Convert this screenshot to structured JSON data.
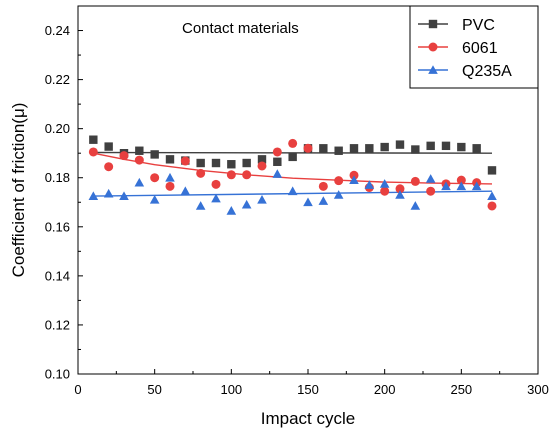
{
  "chart_data": {
    "type": "scatter",
    "annotation": "Contact materials",
    "xlabel": "Impact cycle",
    "ylabel": "Coefficient of friction(μ)",
    "xlim": [
      0,
      300
    ],
    "ylim": [
      0.1,
      0.25
    ],
    "x_ticks": [
      "0",
      "50",
      "100",
      "150",
      "200",
      "250",
      "300"
    ],
    "y_ticks": [
      "0.10",
      "0.12",
      "0.14",
      "0.16",
      "0.18",
      "0.20",
      "0.22",
      "0.24"
    ],
    "grid": false,
    "legend_position": "top-right",
    "series": [
      {
        "name": "PVC",
        "marker": "square",
        "color": "#404040",
        "x": [
          10,
          20,
          30,
          40,
          50,
          60,
          70,
          80,
          90,
          100,
          110,
          120,
          130,
          140,
          150,
          160,
          170,
          180,
          190,
          200,
          210,
          220,
          230,
          240,
          250,
          260,
          270
        ],
        "y": [
          0.1955,
          0.1927,
          0.19,
          0.191,
          0.1895,
          0.1875,
          0.187,
          0.186,
          0.186,
          0.1855,
          0.186,
          0.1875,
          0.1865,
          0.1885,
          0.192,
          0.192,
          0.191,
          0.192,
          0.192,
          0.1925,
          0.1935,
          0.1915,
          0.193,
          0.193,
          0.1925,
          0.192,
          0.183
        ],
        "fit": [
          [
            10,
            0.1903
          ],
          [
            270,
            0.19
          ]
        ]
      },
      {
        "name": "6061",
        "marker": "circle",
        "color": "#e8403f",
        "x": [
          10,
          20,
          30,
          40,
          50,
          60,
          70,
          80,
          90,
          100,
          110,
          120,
          130,
          140,
          150,
          160,
          170,
          180,
          190,
          200,
          210,
          220,
          230,
          240,
          250,
          260,
          270
        ],
        "y": [
          0.1905,
          0.1845,
          0.189,
          0.1872,
          0.18,
          0.1765,
          0.1868,
          0.1818,
          0.1773,
          0.1812,
          0.1812,
          0.1848,
          0.1905,
          0.194,
          0.192,
          0.1765,
          0.1788,
          0.181,
          0.176,
          0.1745,
          0.1755,
          0.1785,
          0.1745,
          0.1775,
          0.179,
          0.178,
          0.1685
        ],
        "fit": [
          [
            10,
            0.19
          ],
          [
            30,
            0.1875
          ],
          [
            50,
            0.1853
          ],
          [
            80,
            0.183
          ],
          [
            110,
            0.1812
          ],
          [
            140,
            0.1798
          ],
          [
            170,
            0.179
          ],
          [
            200,
            0.1782
          ],
          [
            230,
            0.1778
          ],
          [
            270,
            0.1775
          ]
        ]
      },
      {
        "name": "Q235A",
        "marker": "triangle",
        "color": "#3672d6",
        "x": [
          10,
          20,
          30,
          40,
          50,
          60,
          70,
          80,
          90,
          100,
          110,
          120,
          130,
          140,
          150,
          160,
          170,
          180,
          190,
          200,
          210,
          220,
          230,
          240,
          250,
          260,
          270
        ],
        "y": [
          0.1725,
          0.1735,
          0.1725,
          0.178,
          0.171,
          0.18,
          0.1745,
          0.1685,
          0.1715,
          0.1665,
          0.169,
          0.171,
          0.1815,
          0.1745,
          0.17,
          0.1705,
          0.173,
          0.179,
          0.177,
          0.1775,
          0.173,
          0.1685,
          0.1795,
          0.1765,
          0.1765,
          0.1765,
          0.1725
        ],
        "fit": [
          [
            10,
            0.1725
          ],
          [
            270,
            0.1745
          ]
        ]
      }
    ]
  }
}
